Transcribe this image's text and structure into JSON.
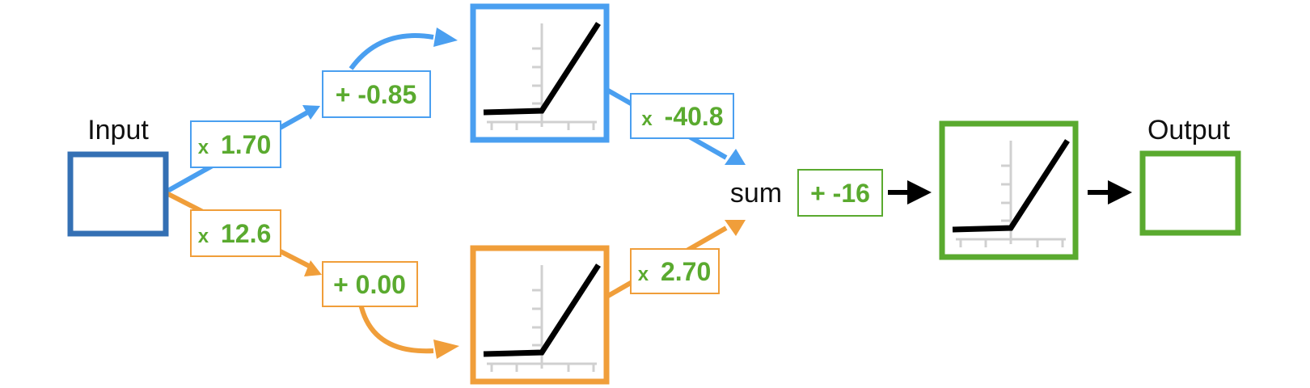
{
  "labels": {
    "input": "Input",
    "output": "Output",
    "sum": "sum"
  },
  "top_path": {
    "weight_in": {
      "op": "x",
      "value": "1.70"
    },
    "bias": "+ -0.85",
    "weight_out": {
      "op": "x",
      "value": "-40.8"
    }
  },
  "bottom_path": {
    "weight_in": {
      "op": "x",
      "value": "12.6"
    },
    "bias": "+ 0.00",
    "weight_out": {
      "op": "x",
      "value": "2.70"
    }
  },
  "final_bias": "+ -16",
  "colors": {
    "input_box": "#3470b4",
    "top_path": "#4a9ff0",
    "bottom_path": "#f09e3a",
    "output": "#5aaa2f",
    "param_text": "#5aaa2f",
    "arrow_black": "#000000",
    "axis_gray": "#d0d0d0"
  },
  "icons": {
    "activation": "relu-activation-icon",
    "arrow": "arrow-icon"
  }
}
